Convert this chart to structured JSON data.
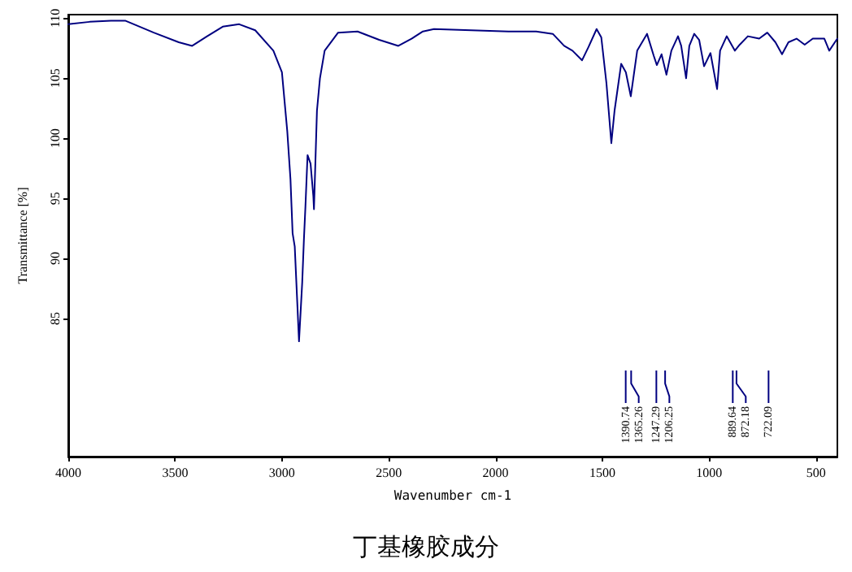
{
  "chart_data": {
    "type": "line",
    "title": "丁基橡胶成分",
    "xlabel": "Wavenumber cm-1",
    "ylabel": "Transmittance [%]",
    "xlim": [
      4000,
      400
    ],
    "xticks": [
      4000,
      3500,
      3000,
      2500,
      2000,
      1500,
      1000,
      500
    ],
    "ylim": [
      73.5,
      110.3
    ],
    "yticks": [
      85,
      90,
      95,
      100,
      105,
      110
    ],
    "grid": false,
    "series": [
      {
        "color": "#000080",
        "x": [
          4000,
          3900,
          3800,
          3734,
          3600,
          3483,
          3420,
          3350,
          3277,
          3200,
          3125,
          3040,
          3000,
          2975,
          2960,
          2950,
          2940,
          2920,
          2905,
          2897,
          2890,
          2880,
          2866,
          2853,
          2850,
          2836,
          2822,
          2800,
          2737,
          2646,
          2545,
          2455,
          2393,
          2340,
          2288,
          1940,
          1810,
          1732,
          1679,
          1640,
          1595,
          1565,
          1527,
          1505,
          1481,
          1458,
          1443,
          1412,
          1390,
          1367,
          1337,
          1314,
          1291,
          1260,
          1245,
          1223,
          1200,
          1177,
          1146,
          1131,
          1108,
          1093,
          1070,
          1047,
          1024,
          994,
          963,
          949,
          918,
          880,
          857,
          819,
          766,
          728,
          690,
          659,
          629,
          591,
          553,
          515,
          461,
          438,
          400
        ],
        "values": [
          109.5,
          109.7,
          109.8,
          109.8,
          108.8,
          108,
          107.7,
          108.5,
          109.3,
          109.5,
          109,
          107.3,
          105.5,
          100.6,
          96.6,
          92.1,
          91,
          83.1,
          88,
          91.6,
          94.3,
          98.6,
          97.9,
          95.2,
          94.1,
          102.3,
          105,
          107.3,
          108.8,
          108.9,
          108.2,
          107.7,
          108.3,
          108.9,
          109.1,
          108.9,
          108.9,
          108.7,
          107.7,
          107.3,
          106.5,
          107.6,
          109.1,
          108.4,
          104.6,
          99.6,
          102.3,
          106.2,
          105.5,
          103.5,
          107.3,
          108,
          108.7,
          106.9,
          106.1,
          107,
          105.3,
          107.3,
          108.5,
          107.7,
          105,
          107.7,
          108.7,
          108.2,
          106,
          107.1,
          104.1,
          107.3,
          108.5,
          107.3,
          107.8,
          108.5,
          108.3,
          108.8,
          108,
          107,
          108,
          108.3,
          107.8,
          108.3,
          108.3,
          107.3,
          108.3
        ]
      }
    ],
    "annotations": [
      "1390.74",
      "1365.26",
      "1247.29",
      "1206.25",
      "889.64",
      "872.18",
      "722.09"
    ]
  }
}
